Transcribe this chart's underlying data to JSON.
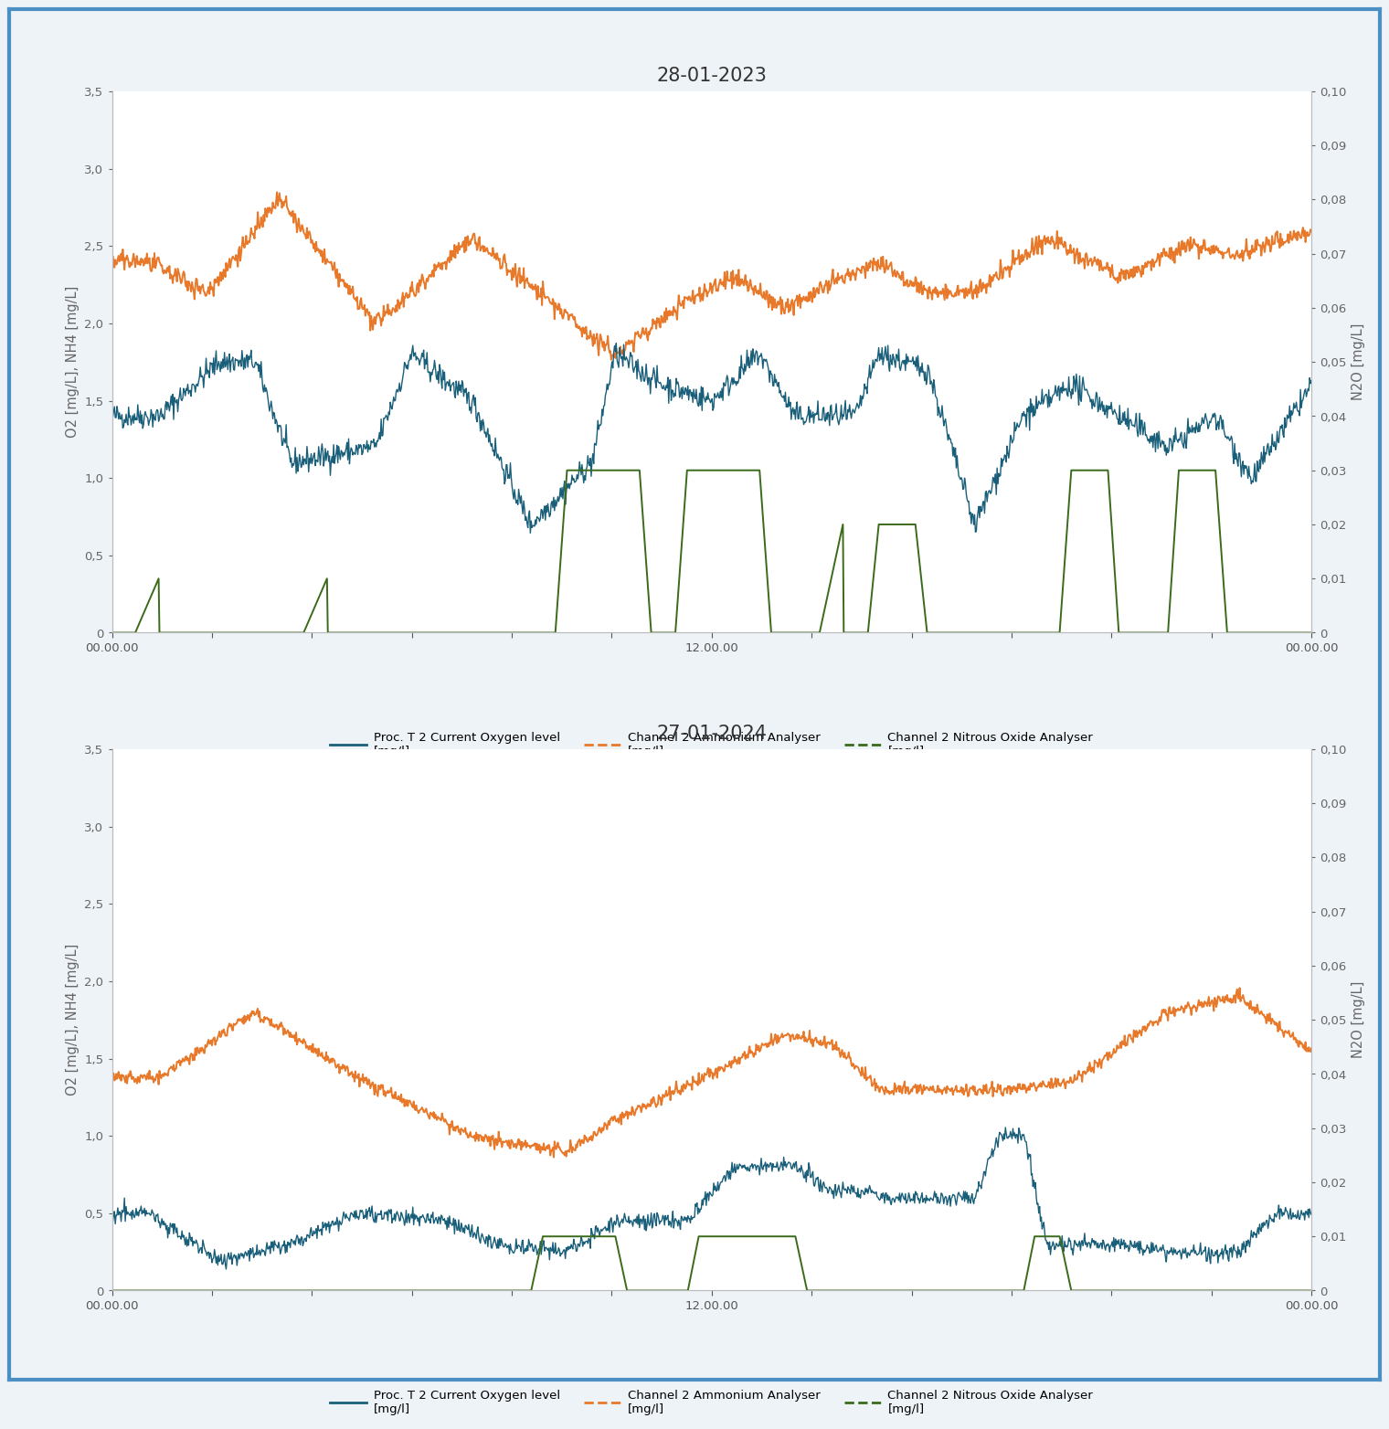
{
  "title1": "28-01-2023",
  "title2": "27-01-2024",
  "outer_border_color": "#4a90c4",
  "background_color": "#ffffff",
  "color_o2": "#1a5f7a",
  "color_nh4": "#e8792a",
  "color_n2o": "#3a6b1a",
  "ylabel_left": "O2 [mg/L], NH4 [mg/L]",
  "ylabel_right": "N2O [mg/L]",
  "legend_labels": [
    "Proc. T 2 Current Oxygen level\n[mg/l]",
    "Channel 2 Ammonium Analyser\n[mg/l]",
    "Channel 2 Nitrous Oxide Analyser\n[mg/l]"
  ],
  "ylim_left": [
    0,
    3.5
  ],
  "ylim_right": [
    0,
    0.1
  ],
  "yticks_left": [
    0,
    0.5,
    1,
    1.5,
    2,
    2.5,
    3,
    3.5
  ],
  "yticks_right": [
    0,
    0.01,
    0.02,
    0.03,
    0.04,
    0.05,
    0.06,
    0.07,
    0.08,
    0.09,
    0.1
  ],
  "xtick_labels": [
    "00.00.00",
    "",
    "",
    "",
    "",
    "",
    "12.00.00",
    "",
    "",
    "",
    "",
    "",
    "00.00.00"
  ],
  "n_points": 1440
}
